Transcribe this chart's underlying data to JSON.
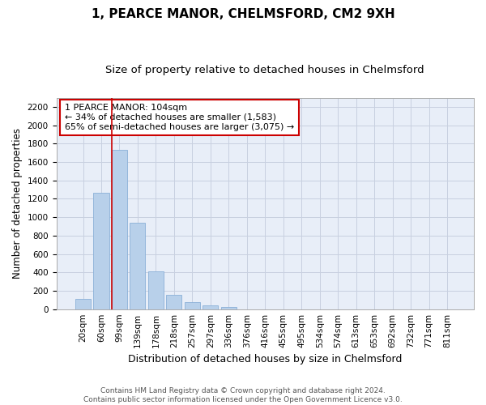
{
  "title": "1, PEARCE MANOR, CHELMSFORD, CM2 9XH",
  "subtitle": "Size of property relative to detached houses in Chelmsford",
  "xlabel": "Distribution of detached houses by size in Chelmsford",
  "ylabel": "Number of detached properties",
  "categories": [
    "20sqm",
    "60sqm",
    "99sqm",
    "139sqm",
    "178sqm",
    "218sqm",
    "257sqm",
    "297sqm",
    "336sqm",
    "376sqm",
    "416sqm",
    "455sqm",
    "495sqm",
    "534sqm",
    "574sqm",
    "613sqm",
    "653sqm",
    "692sqm",
    "732sqm",
    "771sqm",
    "811sqm"
  ],
  "values": [
    110,
    1265,
    1730,
    940,
    410,
    155,
    75,
    45,
    25,
    0,
    0,
    0,
    0,
    0,
    0,
    0,
    0,
    0,
    0,
    0,
    0
  ],
  "bar_color": "#b8d0ea",
  "bar_edge_color": "#8ab0d8",
  "grid_color": "#c8d0e0",
  "background_color": "#e8eef8",
  "annotation_line1": "1 PEARCE MANOR: 104sqm",
  "annotation_line2": "← 34% of detached houses are smaller (1,583)",
  "annotation_line3": "65% of semi-detached houses are larger (3,075) →",
  "annotation_box_color": "#cc0000",
  "vline_x_index": 2,
  "ylim": [
    0,
    2300
  ],
  "yticks": [
    0,
    200,
    400,
    600,
    800,
    1000,
    1200,
    1400,
    1600,
    1800,
    2000,
    2200
  ],
  "footer_line1": "Contains HM Land Registry data © Crown copyright and database right 2024.",
  "footer_line2": "Contains public sector information licensed under the Open Government Licence v3.0.",
  "title_fontsize": 11,
  "subtitle_fontsize": 9.5,
  "xlabel_fontsize": 9,
  "ylabel_fontsize": 8.5,
  "tick_fontsize": 7.5,
  "annotation_fontsize": 8,
  "footer_fontsize": 6.5
}
